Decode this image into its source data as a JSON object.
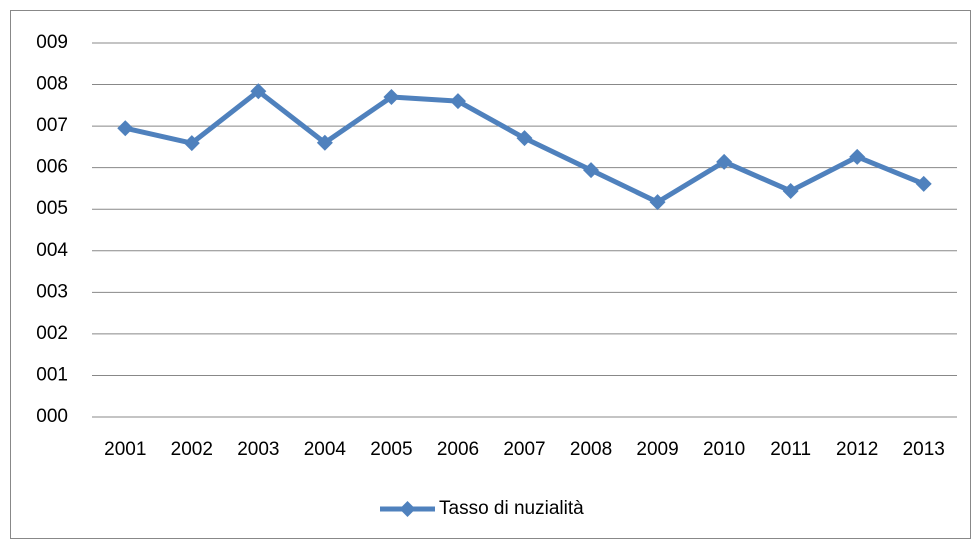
{
  "chart_data": {
    "type": "line",
    "categories": [
      "2001",
      "2002",
      "2003",
      "2004",
      "2005",
      "2006",
      "2007",
      "2008",
      "2009",
      "2010",
      "2011",
      "2012",
      "2013"
    ],
    "series": [
      {
        "name": "Tasso di nuzialità",
        "color": "#4f81bd",
        "values": [
          6.95,
          6.59,
          7.84,
          6.6,
          7.7,
          7.6,
          6.71,
          5.94,
          5.17,
          6.14,
          5.44,
          6.26,
          5.61
        ]
      }
    ],
    "ylim": [
      0,
      9
    ],
    "yticks": [
      {
        "value": 0,
        "label": "000"
      },
      {
        "value": 1,
        "label": "001"
      },
      {
        "value": 2,
        "label": "002"
      },
      {
        "value": 3,
        "label": "003"
      },
      {
        "value": 4,
        "label": "004"
      },
      {
        "value": 5,
        "label": "005"
      },
      {
        "value": 6,
        "label": "006"
      },
      {
        "value": 7,
        "label": "007"
      },
      {
        "value": 8,
        "label": "008"
      },
      {
        "value": 9,
        "label": "009"
      }
    ],
    "grid": true,
    "legend": "bottom"
  }
}
